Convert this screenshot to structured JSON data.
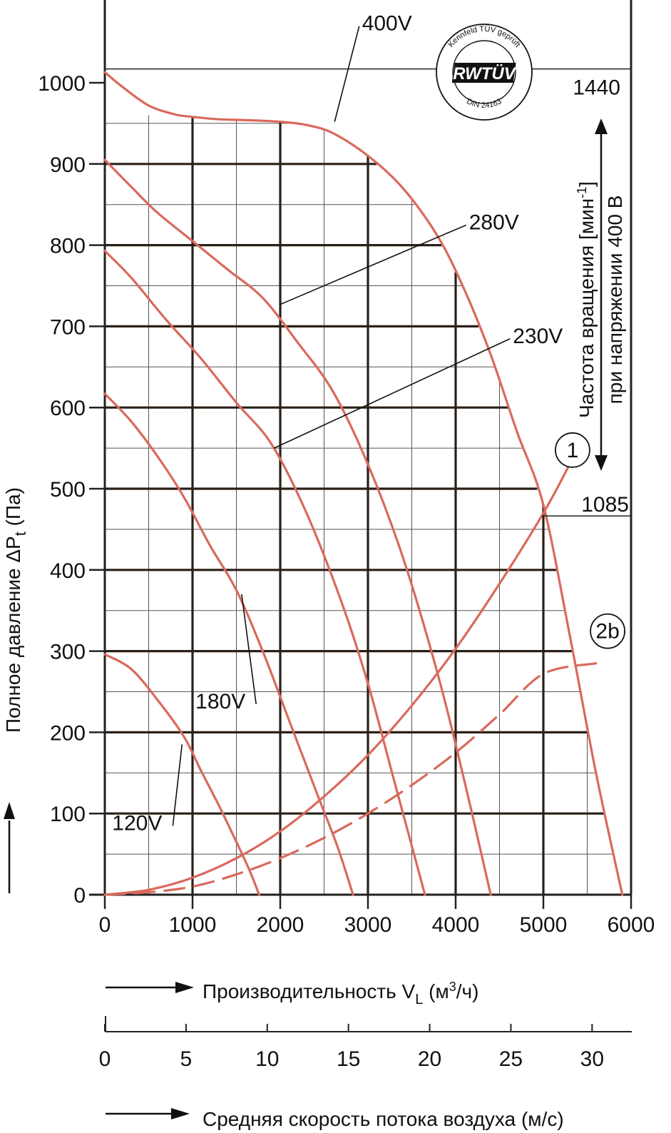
{
  "chart_data": {
    "type": "line",
    "x": {
      "label_prefix": "Производительность V",
      "label_sub": "L",
      "label_unit_a": " (м",
      "label_sup": "3",
      "label_unit_b": "/ч)",
      "range": [
        0,
        6000
      ],
      "ticks": [
        "0",
        "1000",
        "2000",
        "3000",
        "4000",
        "5000",
        "6000"
      ]
    },
    "x2": {
      "label": "Средняя скорость потока воздуха (м/с)",
      "range": [
        0,
        32.4
      ],
      "ticks": [
        "0",
        "5",
        "10",
        "15",
        "20",
        "25",
        "30"
      ]
    },
    "y": {
      "label_prefix": "Полное давление ΔP",
      "label_sub": "t",
      "label_suffix": " (Па)",
      "range": [
        0,
        1000
      ],
      "ticks": [
        "0",
        "100",
        "200",
        "300",
        "400",
        "500",
        "600",
        "700",
        "800",
        "900",
        "1000"
      ]
    },
    "right_axis": {
      "line1_a": "Частота вращения [мин",
      "line1_sup": "-1",
      "line1_b": "]",
      "line2": "при напряжении 400 В",
      "top_value": "1440",
      "bottom_value": "1085",
      "top_pressure": 1017,
      "bottom_pressure": 477
    },
    "series": [
      {
        "name": "400V",
        "color": "#d9695c",
        "style": "solid",
        "x": [
          0,
          200,
          500,
          800,
          1000,
          1300,
          1600,
          2000,
          2300,
          2600,
          3000,
          3400,
          3800,
          4100,
          4400,
          4700,
          5000,
          5300,
          5600,
          5900
        ],
        "y": [
          1013,
          995,
          972,
          961,
          958,
          955,
          954,
          952,
          948,
          938,
          910,
          870,
          810,
          745,
          665,
          570,
          480,
          320,
          150,
          0
        ]
      },
      {
        "name": "280V",
        "color": "#d9695c",
        "style": "solid",
        "x": [
          0,
          300,
          600,
          1000,
          1400,
          1800,
          2200,
          2600,
          3000,
          3400,
          3800,
          4100,
          4400
        ],
        "y": [
          905,
          872,
          840,
          805,
          770,
          735,
          680,
          620,
          530,
          415,
          270,
          140,
          0
        ]
      },
      {
        "name": "230V",
        "color": "#d9695c",
        "style": "solid",
        "x": [
          0,
          300,
          700,
          1100,
          1500,
          1900,
          2300,
          2700,
          3000,
          3300,
          3650
        ],
        "y": [
          793,
          760,
          708,
          660,
          606,
          555,
          470,
          360,
          260,
          140,
          0
        ]
      },
      {
        "name": "180V",
        "color": "#d9695c",
        "style": "solid",
        "x": [
          0,
          300,
          600,
          900,
          1200,
          1500,
          1800,
          2100,
          2400,
          2650,
          2830
        ],
        "y": [
          617,
          583,
          540,
          490,
          430,
          375,
          300,
          215,
          130,
          60,
          0
        ]
      },
      {
        "name": "120V",
        "color": "#d9695c",
        "style": "solid",
        "x": [
          0,
          300,
          600,
          900,
          1100,
          1300,
          1500,
          1650,
          1760
        ],
        "y": [
          296,
          278,
          240,
          195,
          152,
          110,
          65,
          30,
          0
        ]
      },
      {
        "name": "1",
        "color": "#d9695c",
        "style": "solid",
        "x": [
          0,
          500,
          1000,
          1500,
          2000,
          2500,
          3000,
          3500,
          4000,
          4500,
          5000,
          5300
        ],
        "y": [
          0,
          6,
          21,
          45,
          78,
          121,
          172,
          233,
          303,
          383,
          470,
          530
        ]
      },
      {
        "name": "2b",
        "color": "#d9695c",
        "style": "dashed",
        "x": [
          0,
          500,
          1000,
          1500,
          2000,
          2500,
          3000,
          3500,
          4000,
          4500,
          5000,
          5600
        ],
        "y": [
          0,
          3,
          10,
          25,
          45,
          70,
          100,
          135,
          175,
          222,
          272,
          285
        ]
      }
    ],
    "series_labels": [
      {
        "text": "400V",
        "tx": 2900,
        "ty": 1075,
        "lx": 2620,
        "ly": 952
      },
      {
        "text": "280V",
        "tx": 4120,
        "ty": 830,
        "lx": 2000,
        "ly": 727
      },
      {
        "text": "230V",
        "tx": 4620,
        "ty": 690,
        "lx": 1930,
        "ly": 550
      },
      {
        "text": "180V",
        "tx": 1400,
        "ty": 240,
        "lx": 1560,
        "ly": 370
      },
      {
        "text": "120V",
        "tx": 450,
        "ty": 90,
        "lx": 880,
        "ly": 185
      }
    ],
    "circled_labels": [
      {
        "text": "1",
        "x": 5170,
        "y": 523
      },
      {
        "text": "2b",
        "x": 5570,
        "y": 300
      }
    ],
    "logo": {
      "top_text": "Kennfeld TÜV geprüft",
      "badge": "RWTÜV",
      "bottom_text": "DIN 24163"
    }
  }
}
